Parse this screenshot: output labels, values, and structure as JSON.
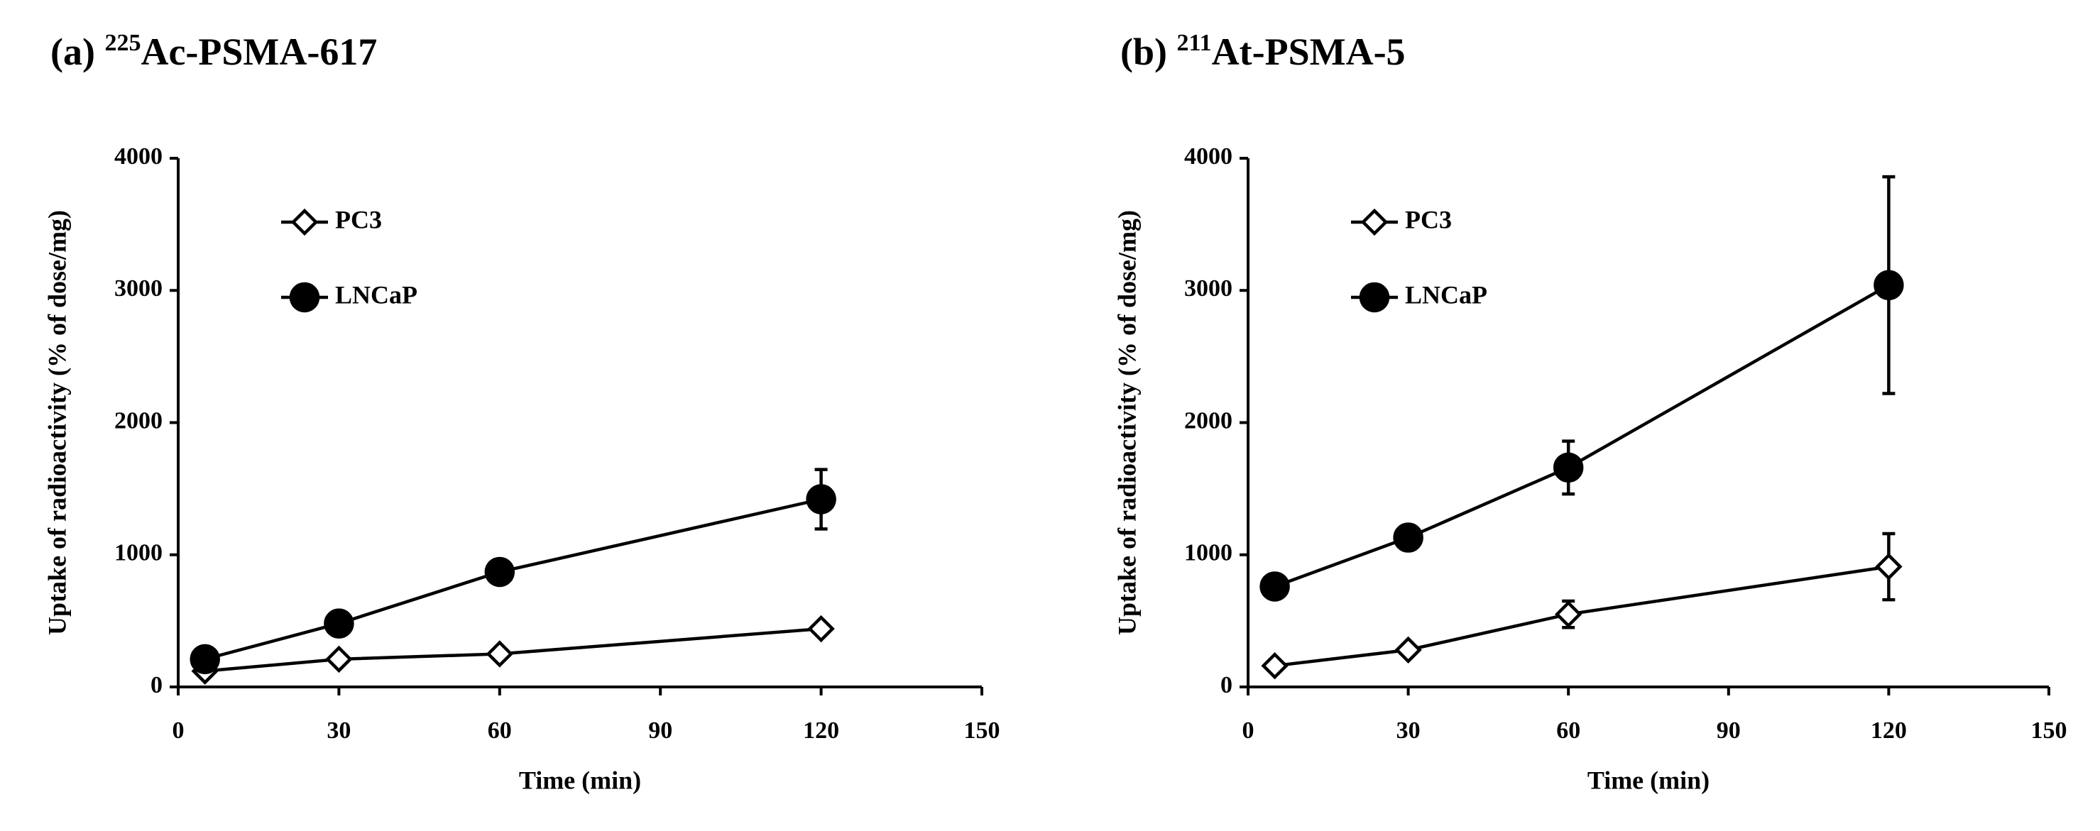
{
  "chart_data": [
    {
      "type": "line",
      "title": [
        "(a) ",
        "225",
        "Ac-PSMA-617"
      ],
      "xlabel": "Time (min)",
      "ylabel": "Uptake of radioactivity (% of dose/mg)",
      "xlim": [
        0,
        150
      ],
      "xticks": [
        0,
        30,
        60,
        90,
        120,
        150
      ],
      "ylim": [
        0,
        4000
      ],
      "yticks": [
        0,
        1000,
        2000,
        3000,
        4000
      ],
      "grid": false,
      "legend": "upper left",
      "x": [
        5,
        30,
        60,
        120
      ],
      "series": [
        {
          "name": "PC3",
          "color": "#000000",
          "marker": "diamond",
          "filled": false,
          "values": [
            120,
            210,
            250,
            440
          ],
          "errors": [
            20,
            30,
            30,
            40
          ]
        },
        {
          "name": "LNCaP",
          "color": "#000000",
          "marker": "circle",
          "filled": true,
          "values": [
            210,
            480,
            870,
            1420
          ],
          "errors": [
            30,
            40,
            50,
            225
          ]
        }
      ]
    },
    {
      "type": "line",
      "title": [
        "(b) ",
        "211",
        "At-PSMA-5"
      ],
      "xlabel": "Time (min)",
      "ylabel": "Uptake of radioactivity (% of dose/mg)",
      "xlim": [
        0,
        150
      ],
      "xticks": [
        0,
        30,
        60,
        90,
        120,
        150
      ],
      "ylim": [
        0,
        4000
      ],
      "yticks": [
        0,
        1000,
        2000,
        3000,
        4000
      ],
      "grid": false,
      "legend": "upper left",
      "x": [
        5,
        30,
        60,
        120
      ],
      "series": [
        {
          "name": "PC3",
          "color": "#000000",
          "marker": "diamond",
          "filled": false,
          "values": [
            160,
            280,
            550,
            910
          ],
          "errors": [
            20,
            40,
            100,
            250
          ]
        },
        {
          "name": "LNCaP",
          "color": "#000000",
          "marker": "circle",
          "filled": true,
          "values": [
            760,
            1130,
            1660,
            3040
          ],
          "errors": [
            40,
            50,
            200,
            820
          ]
        }
      ]
    }
  ]
}
